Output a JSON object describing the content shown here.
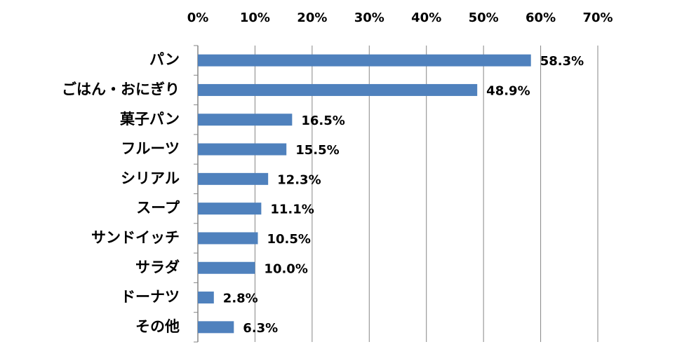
{
  "chart_data": {
    "type": "bar",
    "orientation": "horizontal",
    "categories": [
      "パン",
      "ごはん・おにぎり",
      "菓子パン",
      "フルーツ",
      "シリアル",
      "スープ",
      "サンドイッチ",
      "サラダ",
      "ドーナツ",
      "その他"
    ],
    "values": [
      58.3,
      48.9,
      16.5,
      15.5,
      12.3,
      11.1,
      10.5,
      10.0,
      2.8,
      6.3
    ],
    "value_labels": [
      "58.3%",
      "48.9%",
      "16.5%",
      "15.5%",
      "12.3%",
      "11.1%",
      "10.5%",
      "10.0%",
      "2.8%",
      "6.3%"
    ],
    "color": "#4f81bd",
    "xlim": [
      0,
      70
    ],
    "xticks": [
      {
        "value": 0,
        "label": "0%"
      },
      {
        "value": 10,
        "label": "10%"
      },
      {
        "value": 20,
        "label": "20%"
      },
      {
        "value": 30,
        "label": "30%"
      },
      {
        "value": 40,
        "label": "40%"
      },
      {
        "value": 50,
        "label": "50%"
      },
      {
        "value": 60,
        "label": "60%"
      },
      {
        "value": 70,
        "label": "70%"
      }
    ],
    "grid": true
  }
}
